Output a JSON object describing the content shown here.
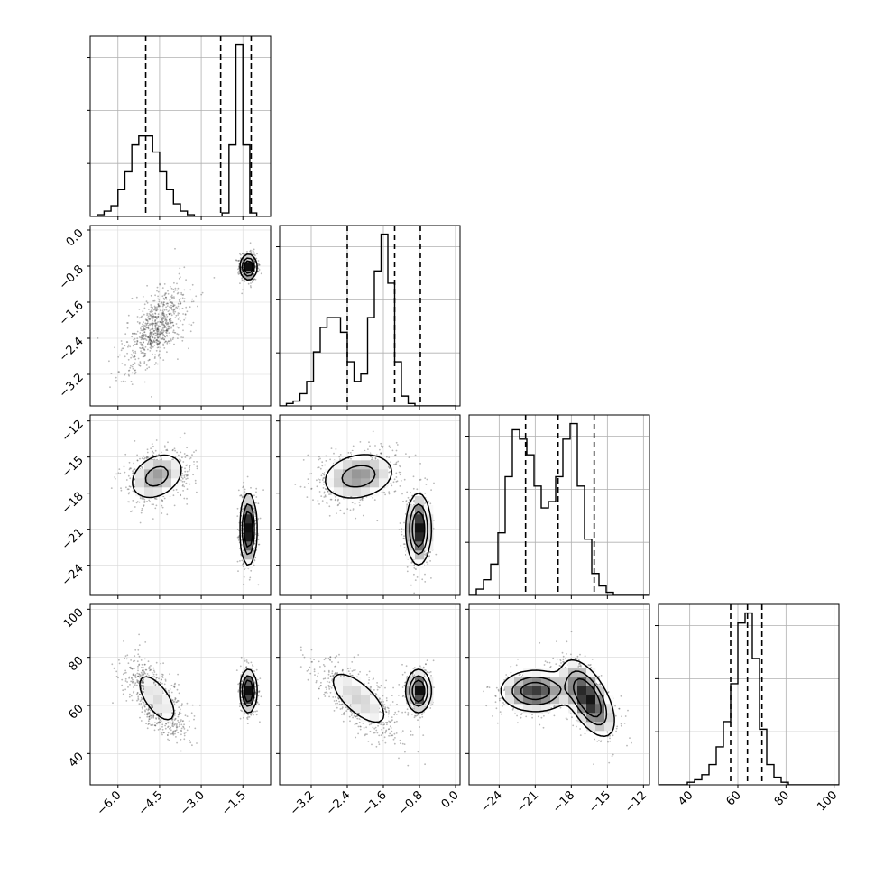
{
  "chart_data": {
    "type": "corner",
    "dimensions": 4,
    "parameters": [
      {
        "range": [
          -7.0,
          -0.5
        ],
        "ticks": [
          -6.0,
          -4.5,
          -3.0,
          -1.5
        ],
        "tick_labels": [
          "−6.0",
          "−4.5",
          "−3.0",
          "−1.5"
        ],
        "quantiles": [
          -5.0,
          -2.3,
          -1.2
        ]
      },
      {
        "range": [
          -3.9,
          0.1
        ],
        "ticks": [
          -3.2,
          -2.4,
          -1.6,
          -0.8,
          0.0
        ],
        "tick_labels": [
          "−3.2",
          "−2.4",
          "−1.6",
          "−0.8",
          "0.0"
        ],
        "quantiles": [
          -2.4,
          -1.35,
          -0.78
        ]
      },
      {
        "range": [
          -26.5,
          -11.5
        ],
        "ticks": [
          -24,
          -21,
          -18,
          -15,
          -12
        ],
        "tick_labels": [
          "−24",
          "−21",
          "−18",
          "−15",
          "−12"
        ],
        "quantiles": [
          -21.8,
          -19.1,
          -16.1
        ]
      },
      {
        "range": [
          27,
          102
        ],
        "ticks": [
          40,
          60,
          80,
          100
        ],
        "tick_labels": [
          "40",
          "60",
          "80",
          "100"
        ],
        "quantiles": [
          57,
          64,
          70
        ]
      }
    ],
    "marginals": [
      {
        "bins": [
          -7.0,
          -6.75,
          -6.5,
          -6.25,
          -6.0,
          -5.75,
          -5.5,
          -5.25,
          -5.0,
          -4.75,
          -4.5,
          -4.25,
          -4.0,
          -3.75,
          -3.5,
          -3.25,
          -3.0,
          -2.75,
          -2.5,
          -2.25,
          -2.0,
          -1.75,
          -1.5,
          -1.25,
          -1.0,
          -0.75,
          -0.5
        ],
        "counts": [
          0,
          1,
          3,
          6,
          15,
          25,
          40,
          45,
          45,
          36,
          25,
          15,
          7,
          3,
          1,
          0,
          0,
          0,
          0,
          2,
          40,
          96,
          40,
          2,
          0,
          0
        ]
      },
      {
        "bins": [
          -3.9,
          -3.75,
          -3.6,
          -3.45,
          -3.3,
          -3.15,
          -3.0,
          -2.85,
          -2.7,
          -2.55,
          -2.4,
          -2.25,
          -2.1,
          -1.95,
          -1.8,
          -1.65,
          -1.5,
          -1.35,
          -1.2,
          -1.05,
          -0.9,
          -0.75,
          -0.6,
          -0.45,
          -0.3,
          -0.15,
          0.0
        ],
        "counts": [
          0,
          1,
          2,
          5,
          10,
          22,
          32,
          36,
          36,
          30,
          18,
          10,
          13,
          36,
          55,
          70,
          50,
          18,
          4,
          1,
          0,
          0,
          0,
          0,
          0,
          0
        ]
      },
      {
        "bins": [
          -26.5,
          -25.9,
          -25.3,
          -24.7,
          -24.1,
          -23.5,
          -22.9,
          -22.3,
          -21.7,
          -21.1,
          -20.5,
          -19.9,
          -19.3,
          -18.7,
          -18.1,
          -17.5,
          -16.9,
          -16.3,
          -15.7,
          -15.1,
          -14.5,
          -13.9,
          -13.3,
          -12.7,
          -12.1,
          -11.5
        ],
        "counts": [
          0,
          2,
          5,
          10,
          20,
          38,
          53,
          50,
          45,
          35,
          28,
          30,
          38,
          50,
          55,
          35,
          18,
          7,
          3,
          1,
          0,
          0,
          0,
          0,
          0
        ]
      },
      {
        "bins": [
          27,
          30,
          33,
          36,
          39,
          42,
          45,
          48,
          51,
          54,
          57,
          60,
          63,
          66,
          69,
          72,
          75,
          78,
          81,
          84,
          87,
          90,
          93,
          96,
          99,
          102
        ],
        "counts": [
          0,
          0,
          0,
          0,
          1,
          2,
          4,
          8,
          15,
          25,
          40,
          64,
          68,
          50,
          22,
          8,
          3,
          1,
          0,
          0,
          0,
          0,
          0,
          0,
          0
        ]
      }
    ],
    "modes": [
      {
        "weight": 0.55,
        "mean": [
          -4.6,
          -2.15,
          -16.6,
          63
        ],
        "std": [
          0.55,
          0.45,
          1.1,
          8
        ],
        "corr": {
          "0,1": 0.6,
          "0,2": 0.3,
          "0,3": -0.65,
          "1,2": 0.2,
          "1,3": -0.7,
          "2,3": -0.6
        }
      },
      {
        "weight": 0.45,
        "mean": [
          -1.3,
          -0.82,
          -21.0,
          66
        ],
        "std": [
          0.15,
          0.14,
          1.5,
          4.5
        ],
        "corr": {
          "0,1": 0.0,
          "0,2": 0.0,
          "0,3": 0.0,
          "1,2": 0.0,
          "1,3": 0.0,
          "2,3": 0.0
        }
      }
    ],
    "grid": true
  }
}
